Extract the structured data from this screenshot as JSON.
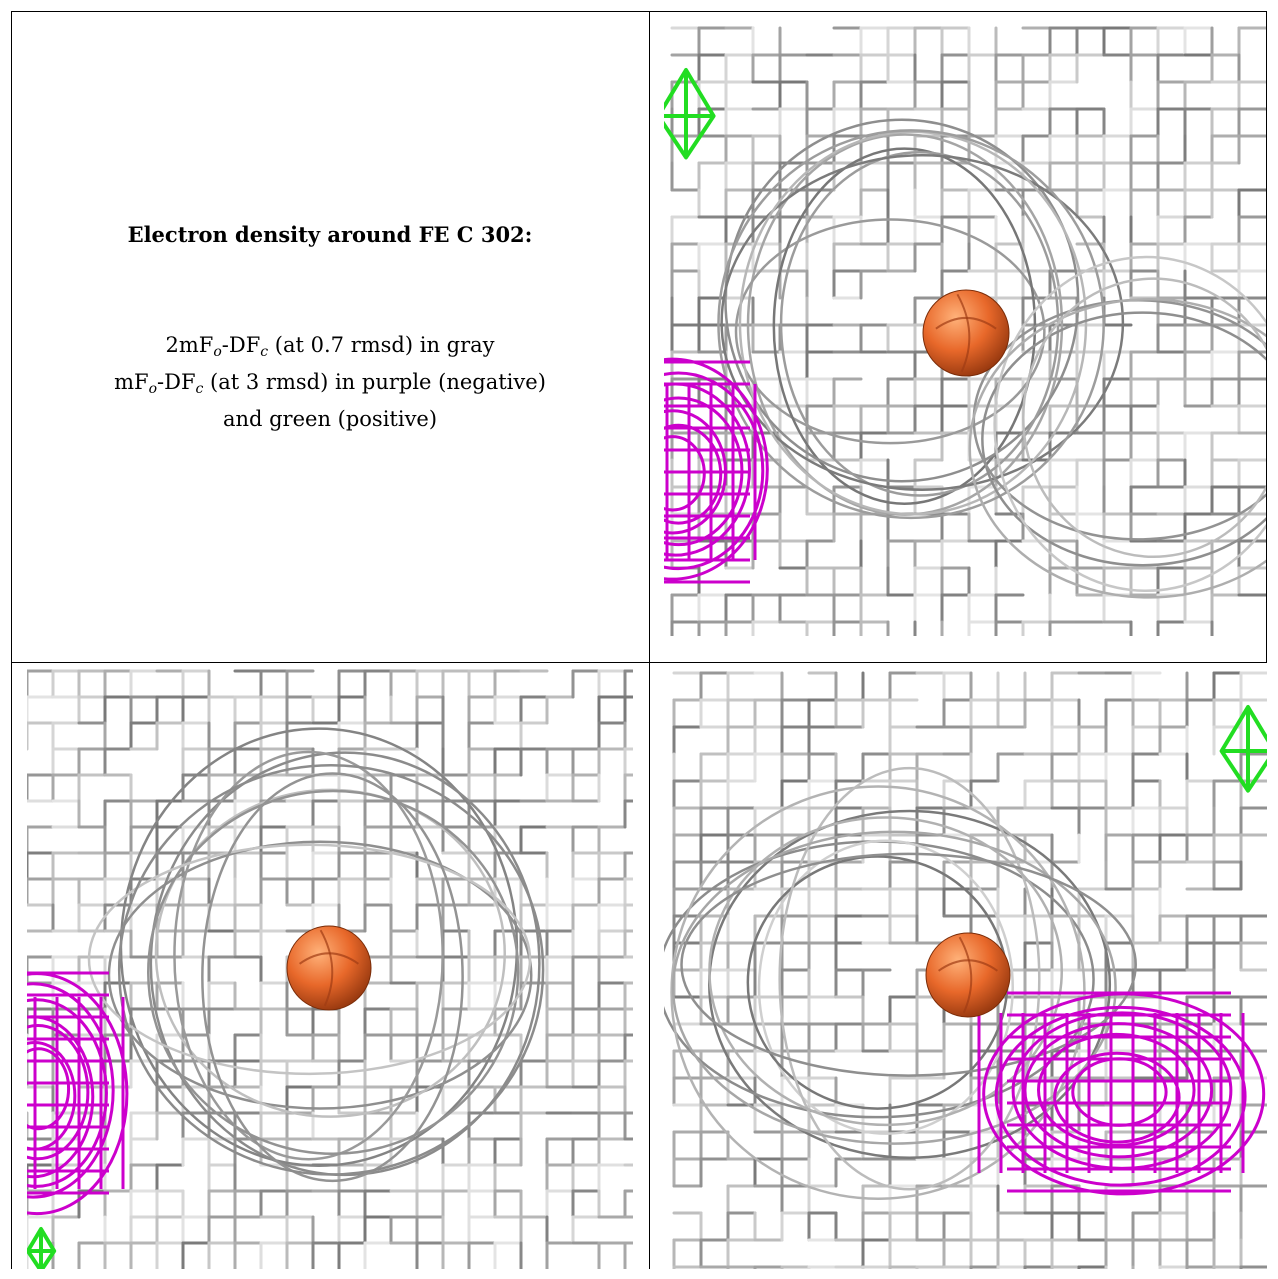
{
  "figure": {
    "title": "Electron density around FE C 302:",
    "legend_lines": [
      {
        "pre": "2mF",
        "sub1": "o",
        "mid": "-DF",
        "sub2": "c",
        "post": " (at 0.7 rmsd) in gray"
      },
      {
        "pre": "mF",
        "sub1": "o",
        "mid": "-DF",
        "sub2": "c",
        "post": " (at 3 rmsd) in purple (negative)"
      },
      {
        "text": "and green (positive)"
      }
    ],
    "colors": {
      "two_fo_fc_map": "#a0a0a0",
      "fo_fc_negative": "#cc00cc",
      "fo_fc_positive": "#22dd22",
      "iron_atom": "#e8682a"
    },
    "panels": [
      {
        "name": "view-top-right",
        "has_negative_density": true,
        "has_positive_density": true
      },
      {
        "name": "view-bottom-left",
        "has_negative_density": true,
        "has_positive_density": true
      },
      {
        "name": "view-bottom-right",
        "has_negative_density": true,
        "has_positive_density": true
      }
    ]
  }
}
